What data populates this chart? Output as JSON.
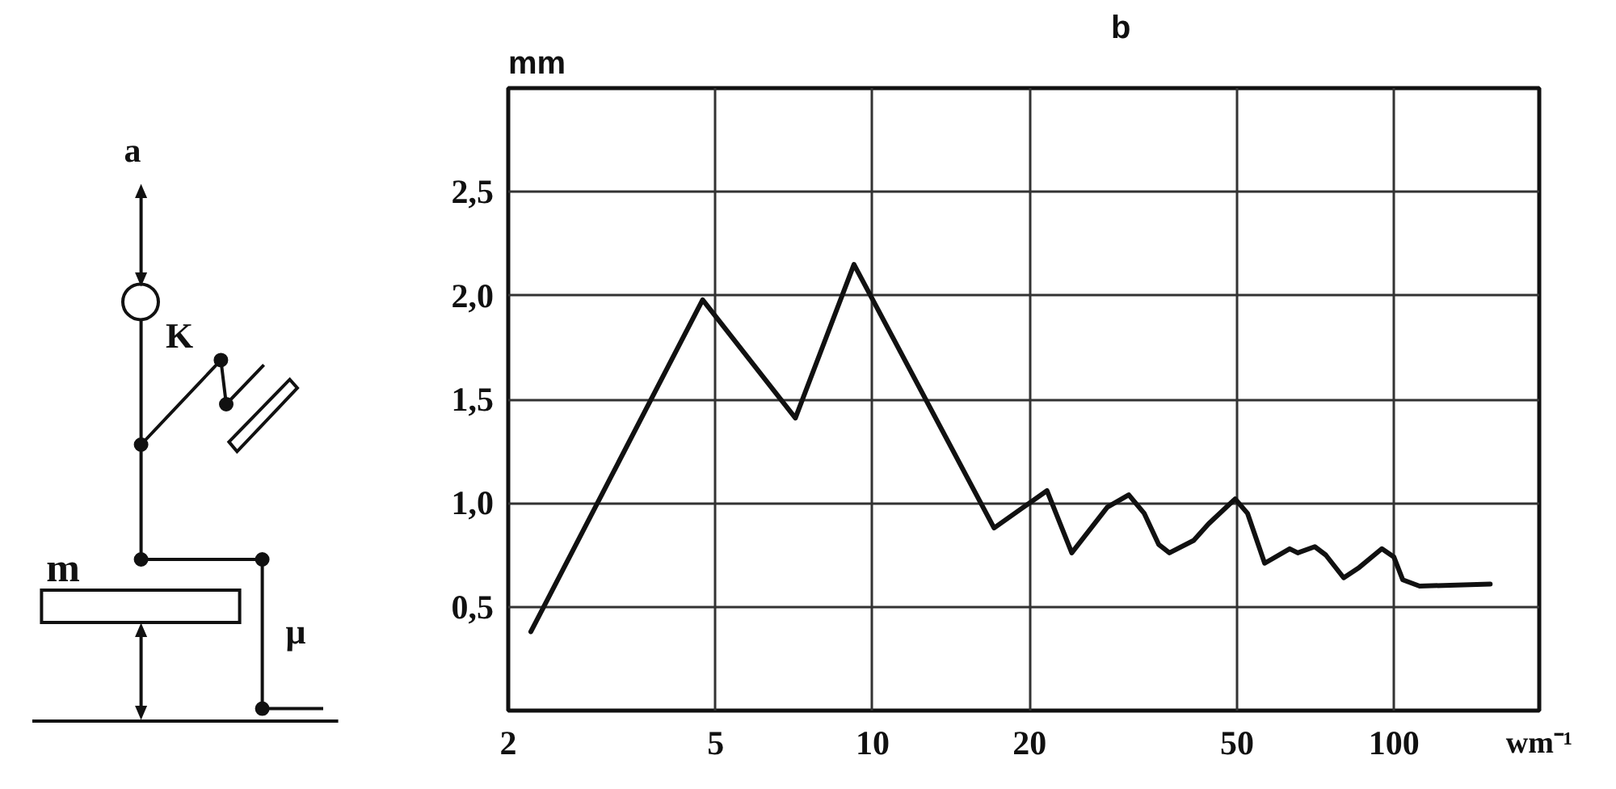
{
  "chart_data": [
    {
      "type": "other",
      "annotations": [
        "a",
        "K",
        "m",
        "μ"
      ]
    },
    {
      "type": "line",
      "title": "b",
      "xlabel": "wm⁻¹",
      "ylabel": "mm",
      "log": "x",
      "grid": true,
      "line_style": "solid",
      "xlim": [
        2,
        190
      ],
      "ylim": [
        0,
        3
      ],
      "xticks": [
        2,
        5,
        10,
        20,
        50,
        100
      ],
      "yticks": [
        {
          "value": 0.5,
          "label": "0,5"
        },
        {
          "value": 1.0,
          "label": "1,0"
        },
        {
          "value": 1.5,
          "label": "1,5"
        },
        {
          "value": 2.0,
          "label": "2,0"
        },
        {
          "value": 2.5,
          "label": "2,5"
        }
      ],
      "x": [
        2.21,
        4.72,
        7.11,
        9.21,
        17.1,
        21.6,
        24.1,
        28.2,
        31.0,
        33.2,
        35.4,
        37.1,
        41.3,
        44.1,
        49.6,
        52.4,
        56.5,
        63.1,
        65.4,
        70.5,
        74.0,
        80.1,
        85.8,
        94.8,
        100,
        104,
        112,
        153
      ],
      "series": [
        {
          "color": "#111111",
          "values": [
            0.38,
            1.98,
            1.41,
            2.15,
            0.88,
            1.06,
            0.76,
            0.98,
            1.04,
            0.95,
            0.8,
            0.76,
            0.82,
            0.9,
            1.02,
            0.95,
            0.71,
            0.78,
            0.76,
            0.79,
            0.75,
            0.64,
            0.69,
            0.78,
            0.74,
            0.63,
            0.6,
            0.61
          ]
        }
      ]
    }
  ]
}
